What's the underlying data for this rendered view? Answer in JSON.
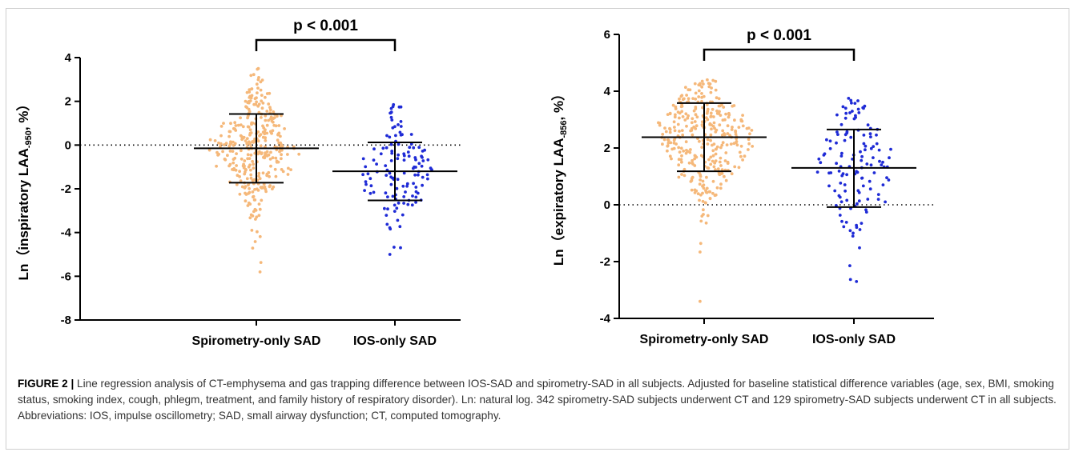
{
  "figure": {
    "caption_label": "FIGURE 2 |",
    "caption_text": " Line regression analysis of CT-emphysema and gas trapping difference between IOS-SAD and spirometry-SAD in all subjects. Adjusted for baseline statistical difference variables (age, sex, BMI, smoking status, smoking index, cough, phlegm, treatment, and family history of respiratory disorder). Ln: natural log. 342 spirometry-SAD subjects underwent CT and 129 spirometry-SAD subjects underwent CT in all subjects. Abbreviations: IOS, impulse oscillometry; SAD, small airway dysfunction; CT, computed tomography."
  },
  "chart_data": [
    {
      "type": "scatter",
      "subtype": "dot-plot with mean and SD",
      "ylabel_prefix": "Ln（inspiratory LAA",
      "ylabel_sub": "-950",
      "ylabel_suffix": ", %）",
      "ylim": [
        -8,
        4
      ],
      "yticks": [
        4,
        2,
        0,
        -2,
        -4,
        -6,
        -8
      ],
      "ytick_labels": [
        "4",
        "2",
        "0",
        "-2",
        "-4",
        "-6",
        "-8"
      ],
      "reference_line": 0,
      "categories": [
        "Spirometry-only SAD",
        "IOS-only SAD"
      ],
      "annotation": "p < 0.001",
      "series": [
        {
          "category": "Spirometry-only SAD",
          "color": "#f5b87a",
          "n": 342,
          "mean": -0.15,
          "sd_upper": 1.42,
          "sd_lower": -1.72,
          "min": -5.8,
          "max": 3.5
        },
        {
          "category": "IOS-only SAD",
          "color": "#1f2bd6",
          "n": 129,
          "mean": -1.2,
          "sd_upper": 0.12,
          "sd_lower": -2.53,
          "min": -5.0,
          "max": 1.85
        }
      ]
    },
    {
      "type": "scatter",
      "subtype": "dot-plot with mean and SD",
      "ylabel_prefix": "Ln（expiratory LAA",
      "ylabel_sub": "-856",
      "ylabel_suffix": ", %）",
      "ylim": [
        -4,
        6
      ],
      "yticks": [
        6,
        4,
        2,
        0,
        -2,
        -4
      ],
      "ytick_labels": [
        "6",
        "4",
        "2",
        "0",
        "-2",
        "-4"
      ],
      "reference_line": 0,
      "categories": [
        "Spirometry-only SAD",
        "IOS-only SAD"
      ],
      "annotation": "p < 0.001",
      "series": [
        {
          "category": "Spirometry-only SAD",
          "color": "#f5b87a",
          "n": 342,
          "mean": 2.38,
          "sd_upper": 3.58,
          "sd_lower": 1.18,
          "min": -3.4,
          "max": 4.4
        },
        {
          "category": "IOS-only SAD",
          "color": "#1f2bd6",
          "n": 129,
          "mean": 1.3,
          "sd_upper": 2.65,
          "sd_lower": -0.08,
          "min": -2.7,
          "max": 3.75
        }
      ]
    }
  ]
}
